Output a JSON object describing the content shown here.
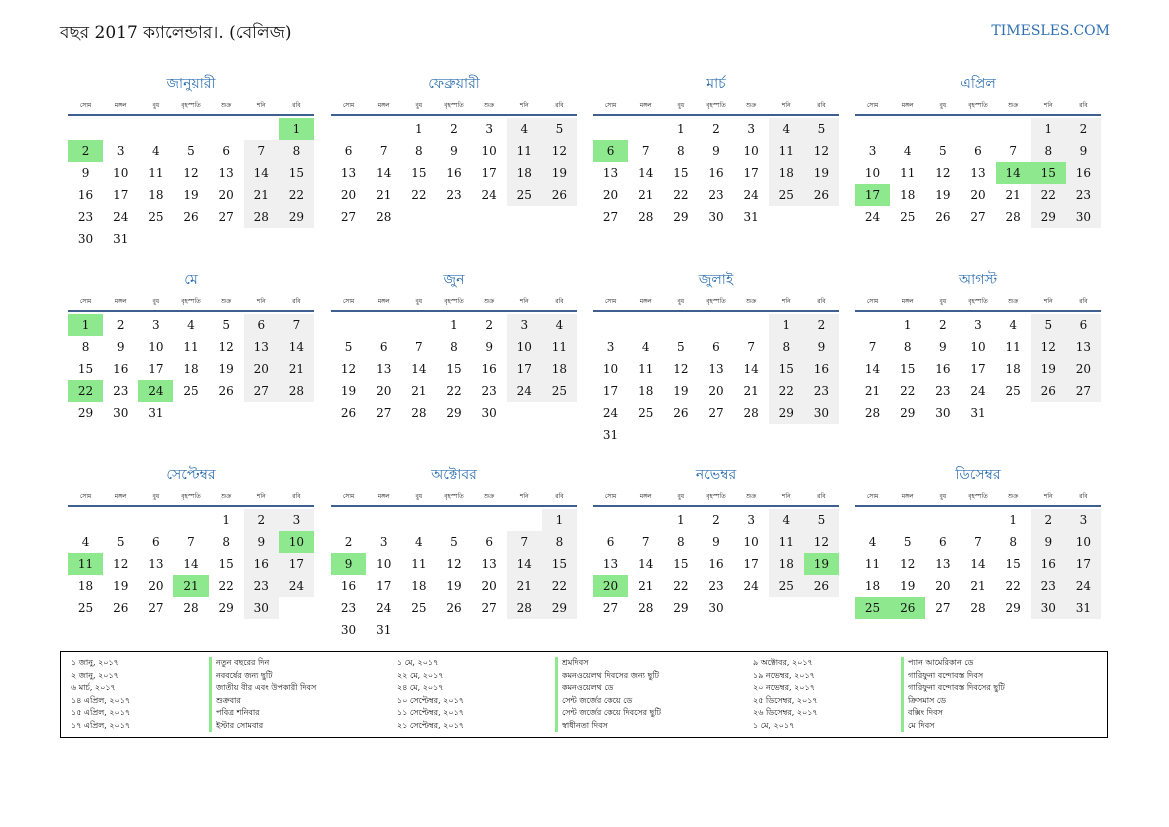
{
  "header": {
    "title": "বছর 2017 ক্যালেন্ডার।. (বেলিজ)",
    "brand": "TIMESLES.COM"
  },
  "weekdays": [
    "সোম",
    "মঙ্গল",
    "বুধ",
    "বৃহস্পতি",
    "শুক্র",
    "শনি",
    "রবি"
  ],
  "months": [
    {
      "name": "জানুয়ারী",
      "offset": 6,
      "days": 31,
      "holidays": [
        1,
        2
      ]
    },
    {
      "name": "ফেব্রুয়ারী",
      "offset": 2,
      "days": 28,
      "holidays": []
    },
    {
      "name": "মার্চ",
      "offset": 2,
      "days": 31,
      "holidays": [
        6
      ]
    },
    {
      "name": "এপ্রিল",
      "offset": 5,
      "days": 30,
      "holidays": [
        14,
        15,
        17
      ]
    },
    {
      "name": "মে",
      "offset": 0,
      "days": 31,
      "holidays": [
        1,
        22,
        24
      ]
    },
    {
      "name": "জুন",
      "offset": 3,
      "days": 30,
      "holidays": []
    },
    {
      "name": "জুলাই",
      "offset": 5,
      "days": 31,
      "holidays": []
    },
    {
      "name": "আগস্ট",
      "offset": 1,
      "days": 31,
      "holidays": []
    },
    {
      "name": "সেপ্টেম্বর",
      "offset": 4,
      "days": 30,
      "holidays": [
        10,
        11,
        21
      ]
    },
    {
      "name": "অক্টোবর",
      "offset": 6,
      "days": 31,
      "holidays": [
        9
      ]
    },
    {
      "name": "নভেম্বর",
      "offset": 2,
      "days": 30,
      "holidays": [
        19,
        20
      ]
    },
    {
      "name": "ডিসেম্বর",
      "offset": 4,
      "days": 31,
      "holidays": [
        25,
        26
      ]
    }
  ],
  "legend": [
    [
      {
        "date": "১ জানু, ২০১৭",
        "name": "নতুন বছরের দিন"
      },
      {
        "date": "২ জানু, ২০১৭",
        "name": "নববর্ষের জন্য ছুটি"
      },
      {
        "date": "৬ মার্চ, ২০১৭",
        "name": "জাতীয় বীর এবং উপকারী দিবস"
      },
      {
        "date": "১৪ এপ্রিল, ২০১৭",
        "name": "শুক্রবার"
      },
      {
        "date": "১৫ এপ্রিল, ২০১৭",
        "name": "পবিত্র শনিবার"
      },
      {
        "date": "১৭ এপ্রিল, ২০১৭",
        "name": "ইস্টার সোমবার"
      }
    ],
    [
      {
        "date": "১ মে, ২০১৭",
        "name": "শ্রমদিবস"
      },
      {
        "date": "২২ মে, ২০১৭",
        "name": "কমনওয়েলথ দিবসের জন্য ছুটি"
      },
      {
        "date": "২৪ মে, ২০১৭",
        "name": "কমনওয়েলথ ডে"
      },
      {
        "date": "১০ সেপ্টেম্বর, ২০১৭",
        "name": "সেন্ট জর্জের কেয়ে ডে"
      },
      {
        "date": "১১ সেপ্টেম্বর, ২০১৭",
        "name": "সেন্ট জর্জের কেয়ে দিবসের ছুটি"
      },
      {
        "date": "২১ সেপ্টেম্বর, ২০১৭",
        "name": "স্বাধীনতা দিবস"
      }
    ],
    [
      {
        "date": "৯ অক্টোবর, ২০১৭",
        "name": "প্যান আমেরিকান ডে"
      },
      {
        "date": "১৯ নভেম্বর, ২০১৭",
        "name": "গারিফুনা বন্দোবস্ত দিবস"
      },
      {
        "date": "২০ নভেম্বর, ২০১৭",
        "name": "গারিফুনা বন্দোবস্ত দিবসের ছুটি"
      },
      {
        "date": "২৫ ডিসেম্বর, ২০১৭",
        "name": "ক্রিসমাস ডে"
      },
      {
        "date": "২৬ ডিসেম্বর, ২০১৭",
        "name": "বক্সিং দিবস"
      },
      {
        "date": "১ মে, ২০১৭",
        "name": "মে দিবস"
      }
    ]
  ]
}
